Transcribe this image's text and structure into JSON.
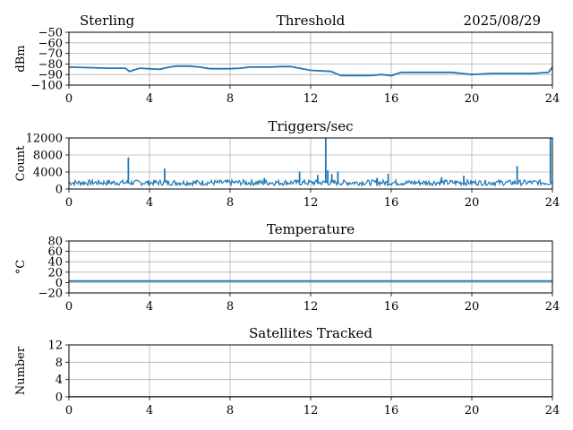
{
  "header": {
    "station": "Sterling",
    "date": "2025/08/29"
  },
  "colors": {
    "line": "#1f77b4",
    "grid": "#b0b0b0",
    "axis": "#000000"
  },
  "chart_data": [
    {
      "type": "line",
      "title": "Threshold",
      "xlabel": "",
      "ylabel": "dBm",
      "xlim": [
        0,
        24
      ],
      "ylim": [
        -100,
        -50
      ],
      "xticks": [
        "0",
        "4",
        "8",
        "12",
        "16",
        "20",
        "24"
      ],
      "yticks": [
        "−100",
        "−90",
        "−80",
        "−70",
        "−60",
        "−50"
      ],
      "grid": true,
      "series": [
        {
          "x": [
            0,
            1,
            2,
            2.8,
            3.0,
            3.5,
            4.5,
            5.0,
            5.3,
            6.0,
            6.5,
            7,
            8,
            8.5,
            9,
            10,
            10.5,
            11.0,
            12,
            13,
            13.5,
            14.5,
            15,
            15.5,
            16,
            16.5,
            17,
            18,
            19,
            19.5,
            20,
            21,
            22,
            23,
            23.8,
            24
          ],
          "y": [
            -83,
            -83.5,
            -84,
            -84,
            -87,
            -84,
            -85,
            -83,
            -82,
            -82,
            -83,
            -84.5,
            -84.5,
            -84,
            -83,
            -83,
            -82.5,
            -82.5,
            -86,
            -87,
            -91,
            -91,
            -91,
            -90,
            -91,
            -88,
            -88,
            -88,
            -88,
            -89,
            -90,
            -89,
            -89,
            -89,
            -88,
            -83
          ]
        }
      ]
    },
    {
      "type": "line",
      "title": "Triggers/sec",
      "xlabel": "",
      "ylabel": "Count",
      "xlim": [
        0,
        24
      ],
      "ylim": [
        0,
        12000
      ],
      "xticks": [
        "0",
        "4",
        "8",
        "12",
        "16",
        "20",
        "24"
      ],
      "yticks": [
        "0",
        "4000",
        "8000",
        "12000"
      ],
      "grid": true,
      "series": [
        {
          "baseline": [
            0,
            1500,
            24,
            1500
          ],
          "spikes": [
            [
              2.95,
              7400
            ],
            [
              4.75,
              4800
            ],
            [
              9.7,
              2600
            ],
            [
              11.45,
              4100
            ],
            [
              12.35,
              3300
            ],
            [
              12.75,
              12000
            ],
            [
              12.85,
              4400
            ],
            [
              13.05,
              3500
            ],
            [
              13.35,
              4100
            ],
            [
              15.3,
              2600
            ],
            [
              15.85,
              3600
            ],
            [
              18.5,
              2800
            ],
            [
              19.6,
              3100
            ],
            [
              22.25,
              5400
            ],
            [
              23.9,
              12000
            ]
          ]
        }
      ]
    },
    {
      "type": "line",
      "title": "Temperature",
      "xlabel": "",
      "ylabel": "°C",
      "xlim": [
        0,
        24
      ],
      "ylim": [
        -20,
        80
      ],
      "xticks": [
        "0",
        "4",
        "8",
        "12",
        "16",
        "20",
        "24"
      ],
      "yticks": [
        "−20",
        "0",
        "20",
        "40",
        "60",
        "80"
      ],
      "grid": true,
      "series": [
        {
          "x": [
            0,
            6,
            12,
            18,
            24
          ],
          "y": [
            3,
            3,
            3,
            3,
            3
          ]
        }
      ]
    },
    {
      "type": "line",
      "title": "Satellites Tracked",
      "xlabel": "",
      "ylabel": "Number",
      "xlim": [
        0,
        24
      ],
      "ylim": [
        0,
        12
      ],
      "xticks": [
        "0",
        "4",
        "8",
        "12",
        "16",
        "20",
        "24"
      ],
      "yticks": [
        "0",
        "4",
        "8",
        "12"
      ],
      "grid": true,
      "series": [
        {
          "x": [
            0,
            24
          ],
          "y": [
            0,
            0
          ]
        }
      ]
    }
  ]
}
